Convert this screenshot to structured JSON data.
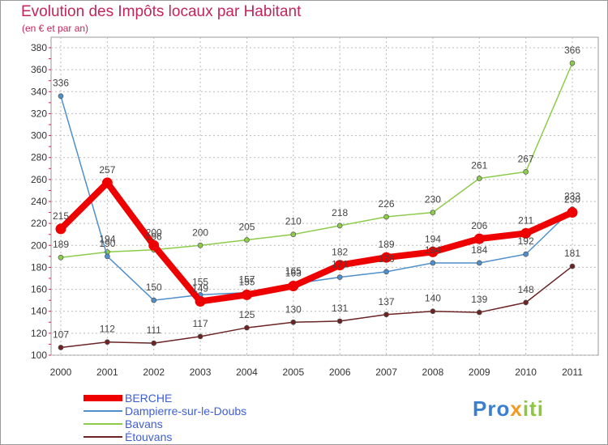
{
  "chart_data": {
    "type": "line",
    "title": "Evolution des Impôts locaux par Habitant",
    "subtitle": "(en € et par an)",
    "xlabel": "",
    "ylabel": "",
    "ylim": [
      100,
      380
    ],
    "yticks": [
      100,
      120,
      140,
      160,
      180,
      200,
      220,
      240,
      260,
      280,
      300,
      320,
      340,
      360,
      380
    ],
    "x": [
      "2000",
      "2001",
      "2002",
      "2003",
      "2004",
      "2005",
      "2006",
      "2007",
      "2008",
      "2009",
      "2010",
      "2011"
    ],
    "grid": true,
    "series": [
      {
        "name": "BERCHE",
        "color": "#ee0000",
        "values": [
          215,
          257,
          200,
          149,
          155,
          163,
          182,
          189,
          194,
          206,
          211,
          230
        ],
        "labels": [
          "215",
          "257",
          "200",
          "149",
          "155",
          "163",
          "182",
          "189",
          "194",
          "206",
          "211",
          "230"
        ]
      },
      {
        "name": "Dampierre-sur-le-Doubs",
        "color": "#4f8fcc",
        "values": [
          336,
          190,
          150,
          155,
          157,
          165,
          171,
          176,
          184,
          184,
          192,
          233
        ],
        "labels": [
          "336",
          "190",
          "150",
          "155",
          "157",
          "165",
          "171",
          "176",
          "184",
          "184",
          "192",
          "233"
        ]
      },
      {
        "name": "Bavans",
        "color": "#8dcc4a",
        "values": [
          189,
          194,
          196,
          200,
          205,
          210,
          218,
          226,
          230,
          261,
          267,
          366
        ],
        "labels": [
          "189",
          "194",
          "196",
          "200",
          "205",
          "210",
          "218",
          "226",
          "230",
          "261",
          "267",
          "366"
        ]
      },
      {
        "name": "Étouvans",
        "color": "#6b2323",
        "values": [
          107,
          112,
          111,
          117,
          125,
          130,
          131,
          137,
          140,
          139,
          148,
          181
        ],
        "labels": [
          "107",
          "112",
          "111",
          "117",
          "125",
          "130",
          "131",
          "137",
          "140",
          "139",
          "148",
          "181"
        ]
      }
    ]
  },
  "logo": {
    "text": "Proxiti"
  }
}
